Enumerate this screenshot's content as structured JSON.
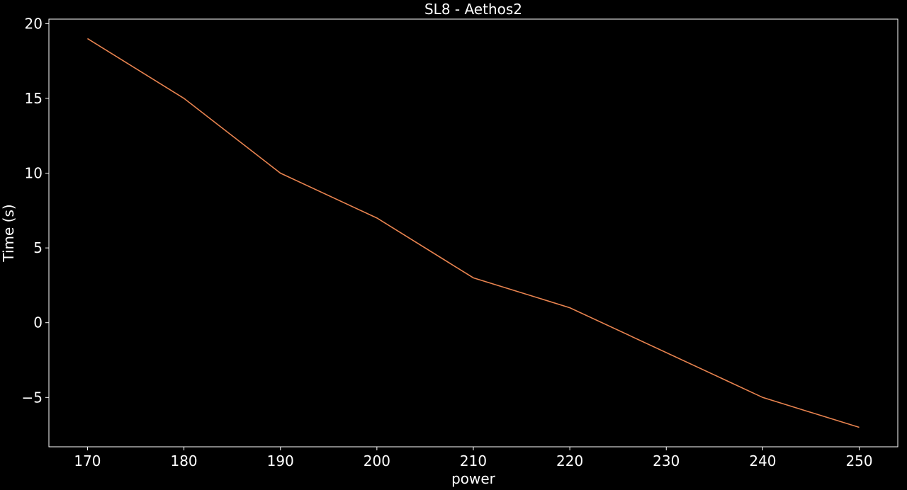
{
  "chart_data": {
    "type": "line",
    "title": "SL8 - Aethos2",
    "xlabel": "power",
    "ylabel": "Time (s)",
    "x": [
      170,
      180,
      190,
      200,
      210,
      220,
      240,
      250
    ],
    "series": [
      {
        "color": "#e8834f",
        "values": [
          19,
          15,
          10,
          7,
          3,
          1,
          -5,
          -7
        ]
      }
    ],
    "xlim": [
      166,
      254
    ],
    "xticks": [
      170,
      180,
      190,
      200,
      210,
      220,
      230,
      240,
      250
    ],
    "ylim": [
      -8.3,
      20.3
    ],
    "yticks": [
      {
        "value": -5,
        "label": "−5"
      },
      0,
      5,
      10,
      15,
      20
    ]
  }
}
